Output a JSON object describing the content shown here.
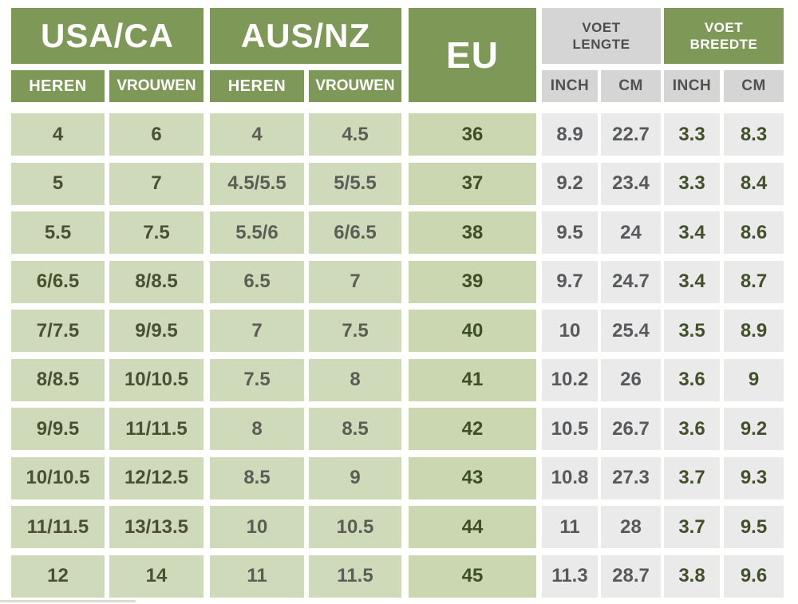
{
  "header": {
    "usa_ca": "USA/CA",
    "aus_nz": "AUS/NZ",
    "eu": "EU",
    "voet_lengte": "VOET\nLENGTE",
    "voet_breedte": "VOET\nBREEDTE",
    "heren": "HEREN",
    "vrouwen": "VROUWEN",
    "inch": "INCH",
    "cm": "CM"
  },
  "colors": {
    "green_header": "#7e9857",
    "green_cell": "#cfdaba",
    "eu_cell": "#cbd7b0",
    "gray_header": "#d5d5d5",
    "gray_cell": "#eaeaea",
    "t_usa": "#485230",
    "t_aus": "#5a5e54",
    "t_eu": "#3e4e28",
    "t_gray": "#58595b",
    "t_breedte": "#43512a",
    "t_grayhdr": "#4e4e4e",
    "page_bg": "#fffffe"
  },
  "chart_data": {
    "type": "table",
    "column_groups": [
      "USA/CA",
      "AUS/NZ",
      "EU",
      "VOET LENGTE",
      "VOET BREEDTE"
    ],
    "columns": [
      "usa_heren",
      "usa_vrouwen",
      "aus_heren",
      "aus_vrouwen",
      "eu",
      "lengte_inch",
      "lengte_cm",
      "breedte_inch",
      "breedte_cm"
    ],
    "rows": [
      {
        "usa_heren": "4",
        "usa_vrouwen": "6",
        "aus_heren": "4",
        "aus_vrouwen": "4.5",
        "eu": "36",
        "lengte_inch": "8.9",
        "lengte_cm": "22.7",
        "breedte_inch": "3.3",
        "breedte_cm": "8.3"
      },
      {
        "usa_heren": "5",
        "usa_vrouwen": "7",
        "aus_heren": "4.5/5.5",
        "aus_vrouwen": "5/5.5",
        "eu": "37",
        "lengte_inch": "9.2",
        "lengte_cm": "23.4",
        "breedte_inch": "3.3",
        "breedte_cm": "8.4"
      },
      {
        "usa_heren": "5.5",
        "usa_vrouwen": "7.5",
        "aus_heren": "5.5/6",
        "aus_vrouwen": "6/6.5",
        "eu": "38",
        "lengte_inch": "9.5",
        "lengte_cm": "24",
        "breedte_inch": "3.4",
        "breedte_cm": "8.6"
      },
      {
        "usa_heren": "6/6.5",
        "usa_vrouwen": "8/8.5",
        "aus_heren": "6.5",
        "aus_vrouwen": "7",
        "eu": "39",
        "lengte_inch": "9.7",
        "lengte_cm": "24.7",
        "breedte_inch": "3.4",
        "breedte_cm": "8.7"
      },
      {
        "usa_heren": "7/7.5",
        "usa_vrouwen": "9/9.5",
        "aus_heren": "7",
        "aus_vrouwen": "7.5",
        "eu": "40",
        "lengte_inch": "10",
        "lengte_cm": "25.4",
        "breedte_inch": "3.5",
        "breedte_cm": "8.9"
      },
      {
        "usa_heren": "8/8.5",
        "usa_vrouwen": "10/10.5",
        "aus_heren": "7.5",
        "aus_vrouwen": "8",
        "eu": "41",
        "lengte_inch": "10.2",
        "lengte_cm": "26",
        "breedte_inch": "3.6",
        "breedte_cm": "9"
      },
      {
        "usa_heren": "9/9.5",
        "usa_vrouwen": "11/11.5",
        "aus_heren": "8",
        "aus_vrouwen": "8.5",
        "eu": "42",
        "lengte_inch": "10.5",
        "lengte_cm": "26.7",
        "breedte_inch": "3.6",
        "breedte_cm": "9.2"
      },
      {
        "usa_heren": "10/10.5",
        "usa_vrouwen": "12/12.5",
        "aus_heren": "8.5",
        "aus_vrouwen": "9",
        "eu": "43",
        "lengte_inch": "10.8",
        "lengte_cm": "27.3",
        "breedte_inch": "3.7",
        "breedte_cm": "9.3"
      },
      {
        "usa_heren": "11/11.5",
        "usa_vrouwen": "13/13.5",
        "aus_heren": "10",
        "aus_vrouwen": "10.5",
        "eu": "44",
        "lengte_inch": "11",
        "lengte_cm": "28",
        "breedte_inch": "3.7",
        "breedte_cm": "9.5"
      },
      {
        "usa_heren": "12",
        "usa_vrouwen": "14",
        "aus_heren": "11",
        "aus_vrouwen": "11.5",
        "eu": "45",
        "lengte_inch": "11.3",
        "lengte_cm": "28.7",
        "breedte_inch": "3.8",
        "breedte_cm": "9.6"
      }
    ]
  }
}
